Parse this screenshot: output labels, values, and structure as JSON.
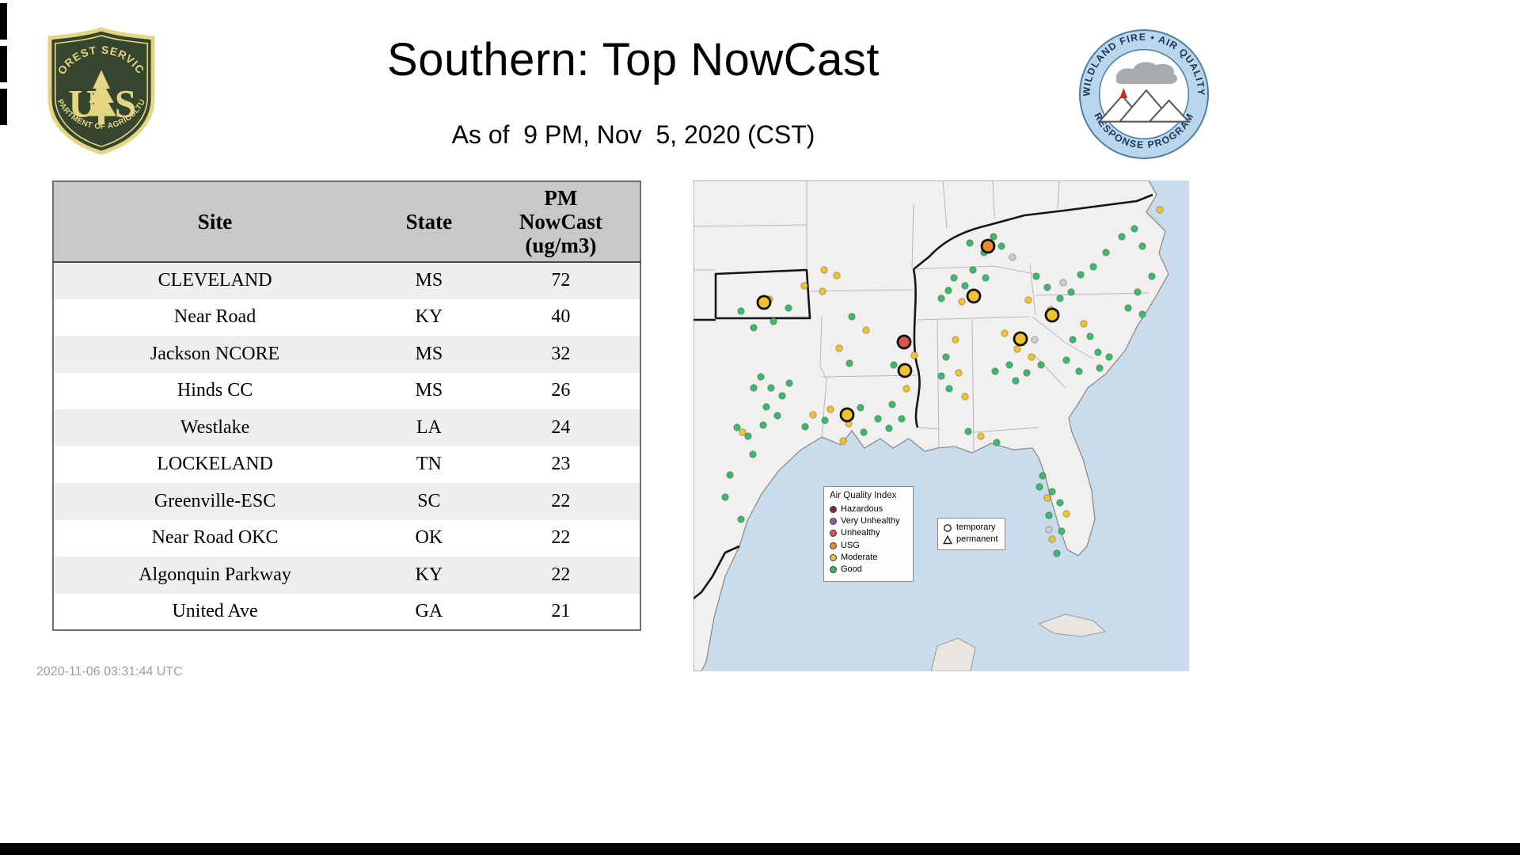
{
  "page": {
    "title": "Southern: Top NowCast",
    "subtitle": "As of  9 PM, Nov  5, 2020 (CST)",
    "timestamp": "2020-11-06 03:31:44 UTC"
  },
  "logos": {
    "forest_service": {
      "top_arc": "FOREST SERVICE",
      "letter_left": "U",
      "letter_right": "S",
      "bottom_arc": "DEPARTMENT OF AGRICULTURE"
    },
    "aqrp": {
      "top_arc": "WILDLAND FIRE • AIR QUALITY",
      "bottom_arc": "RESPONSE PROGRAM"
    }
  },
  "table": {
    "headers": [
      "Site",
      "State",
      "PM\nNowCast\n(ug/m3)"
    ],
    "rows": [
      [
        "CLEVELAND",
        "MS",
        "72"
      ],
      [
        "Near Road",
        "KY",
        "40"
      ],
      [
        "Jackson NCORE",
        "MS",
        "32"
      ],
      [
        "Hinds CC",
        "MS",
        "26"
      ],
      [
        "Westlake",
        "LA",
        "24"
      ],
      [
        "LOCKELAND",
        "TN",
        "23"
      ],
      [
        "Greenville-ESC",
        "SC",
        "22"
      ],
      [
        "Near Road OKC",
        "OK",
        "22"
      ],
      [
        "Algonquin Parkway",
        "KY",
        "22"
      ],
      [
        "United Ave",
        "GA",
        "21"
      ]
    ]
  },
  "map": {
    "palette": {
      "hazardous": "#7e2b44",
      "very_unhealthy": "#9757a5",
      "unhealthy": "#e0524e",
      "usg": "#e78a31",
      "moderate": "#f0c22f",
      "good": "#3db96e",
      "inactive": "#c9ced4"
    },
    "legend": {
      "title": "Air Quality Index",
      "items": [
        {
          "key": "hazardous",
          "label": "Hazardous"
        },
        {
          "key": "very_unhealthy",
          "label": "Very Unhealthy"
        },
        {
          "key": "unhealthy",
          "label": "Unhealthy"
        },
        {
          "key": "usg",
          "label": "USG"
        },
        {
          "key": "moderate",
          "label": "Moderate"
        },
        {
          "key": "good",
          "label": "Good"
        }
      ]
    },
    "marker_legend": {
      "items": [
        {
          "icon": "circle",
          "label": "temporary"
        },
        {
          "icon": "triangle",
          "label": "permanent"
        }
      ]
    },
    "top_sites": [
      [
        89,
        154,
        "moderate"
      ],
      [
        372,
        83,
        "usg"
      ],
      [
        354,
        146,
        "moderate"
      ],
      [
        453,
        170,
        "moderate"
      ],
      [
        266,
        204,
        "unhealthy"
      ],
      [
        413,
        200,
        "moderate"
      ],
      [
        267,
        240,
        "moderate"
      ],
      [
        194,
        296,
        "moderate"
      ]
    ],
    "dots": [
      [
        60,
        165,
        "good"
      ],
      [
        96,
        150,
        "moderate"
      ],
      [
        140,
        133,
        "moderate"
      ],
      [
        163,
        140,
        "moderate"
      ],
      [
        120,
        161,
        "good"
      ],
      [
        76,
        186,
        "good"
      ],
      [
        101,
        178,
        "good"
      ],
      [
        165,
        113,
        "moderate"
      ],
      [
        181,
        120,
        "moderate"
      ],
      [
        200,
        172,
        "good"
      ],
      [
        184,
        212,
        "moderate"
      ],
      [
        197,
        231,
        "good"
      ],
      [
        218,
        189,
        "moderate"
      ],
      [
        85,
        248,
        "good"
      ],
      [
        98,
        262,
        "good"
      ],
      [
        112,
        272,
        "good"
      ],
      [
        92,
        286,
        "good"
      ],
      [
        106,
        297,
        "good"
      ],
      [
        76,
        262,
        "good"
      ],
      [
        121,
        256,
        "good"
      ],
      [
        88,
        309,
        "good"
      ],
      [
        62,
        318,
        "moderate"
      ],
      [
        69,
        323,
        "good"
      ],
      [
        55,
        312,
        "good"
      ],
      [
        75,
        346,
        "good"
      ],
      [
        46,
        372,
        "good"
      ],
      [
        40,
        400,
        "good"
      ],
      [
        60,
        428,
        "good"
      ],
      [
        151,
        296,
        "moderate"
      ],
      [
        166,
        303,
        "good"
      ],
      [
        141,
        311,
        "good"
      ],
      [
        173,
        289,
        "moderate"
      ],
      [
        196,
        307,
        "moderate"
      ],
      [
        215,
        318,
        "good"
      ],
      [
        233,
        301,
        "good"
      ],
      [
        247,
        313,
        "good"
      ],
      [
        211,
        287,
        "good"
      ],
      [
        189,
        329,
        "moderate"
      ],
      [
        253,
        233,
        "good"
      ],
      [
        269,
        263,
        "moderate"
      ],
      [
        251,
        283,
        "good"
      ],
      [
        263,
        301,
        "good"
      ],
      [
        279,
        221,
        "moderate"
      ],
      [
        313,
        149,
        "good"
      ],
      [
        329,
        123,
        "good"
      ],
      [
        343,
        133,
        "good"
      ],
      [
        357,
        143,
        "good"
      ],
      [
        339,
        153,
        "moderate"
      ],
      [
        369,
        123,
        "good"
      ],
      [
        353,
        113,
        "good"
      ],
      [
        322,
        139,
        "good"
      ],
      [
        349,
        79,
        "good"
      ],
      [
        367,
        91,
        "good"
      ],
      [
        389,
        83,
        "good"
      ],
      [
        403,
        97,
        "inactive"
      ],
      [
        379,
        71,
        "good"
      ],
      [
        433,
        121,
        "good"
      ],
      [
        447,
        135,
        "good"
      ],
      [
        463,
        149,
        "good"
      ],
      [
        477,
        141,
        "good"
      ],
      [
        423,
        151,
        "moderate"
      ],
      [
        451,
        163,
        "moderate"
      ],
      [
        467,
        129,
        "inactive"
      ],
      [
        489,
        119,
        "good"
      ],
      [
        505,
        109,
        "good"
      ],
      [
        521,
        91,
        "good"
      ],
      [
        541,
        71,
        "good"
      ],
      [
        557,
        61,
        "good"
      ],
      [
        589,
        37,
        "moderate"
      ],
      [
        567,
        83,
        "good"
      ],
      [
        579,
        121,
        "good"
      ],
      [
        561,
        141,
        "good"
      ],
      [
        549,
        161,
        "good"
      ],
      [
        567,
        169,
        "good"
      ],
      [
        493,
        181,
        "moderate"
      ],
      [
        479,
        201,
        "good"
      ],
      [
        501,
        197,
        "good"
      ],
      [
        511,
        217,
        "good"
      ],
      [
        471,
        227,
        "good"
      ],
      [
        487,
        241,
        "good"
      ],
      [
        513,
        237,
        "good"
      ],
      [
        525,
        223,
        "good"
      ],
      [
        393,
        193,
        "moderate"
      ],
      [
        409,
        213,
        "moderate"
      ],
      [
        427,
        223,
        "moderate"
      ],
      [
        399,
        233,
        "good"
      ],
      [
        421,
        243,
        "good"
      ],
      [
        439,
        233,
        "good"
      ],
      [
        407,
        253,
        "good"
      ],
      [
        381,
        241,
        "good"
      ],
      [
        431,
        201,
        "inactive"
      ],
      [
        319,
        223,
        "good"
      ],
      [
        335,
        243,
        "moderate"
      ],
      [
        323,
        263,
        "good"
      ],
      [
        343,
        273,
        "moderate"
      ],
      [
        331,
        201,
        "moderate"
      ],
      [
        313,
        247,
        "good"
      ],
      [
        363,
        323,
        "moderate"
      ],
      [
        383,
        331,
        "good"
      ],
      [
        347,
        317,
        "good"
      ],
      [
        441,
        373,
        "good"
      ],
      [
        453,
        393,
        "good"
      ],
      [
        449,
        423,
        "good"
      ],
      [
        465,
        443,
        "good"
      ],
      [
        459,
        471,
        "good"
      ],
      [
        447,
        401,
        "moderate"
      ],
      [
        471,
        421,
        "moderate"
      ],
      [
        453,
        453,
        "moderate"
      ],
      [
        437,
        387,
        "good"
      ],
      [
        463,
        407,
        "good"
      ],
      [
        449,
        441,
        "inactive"
      ]
    ]
  }
}
